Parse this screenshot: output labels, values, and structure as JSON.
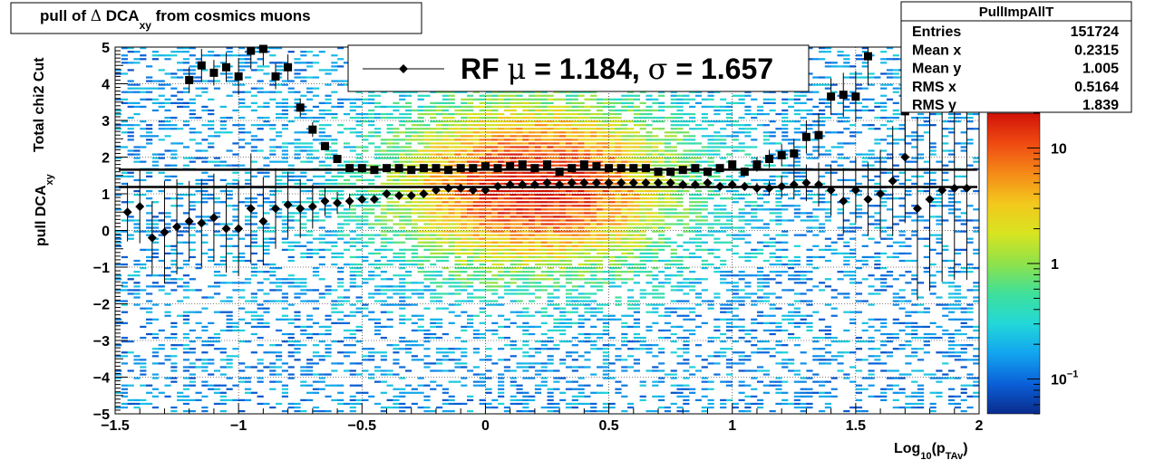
{
  "title": {
    "prefix": "pull of ",
    "delta": "Δ",
    "main": " DCA",
    "sub": "xy",
    "suffix": " from cosmics muons"
  },
  "stats": {
    "name": "PullImpAllT",
    "rows": [
      {
        "label": "Entries",
        "value": "151724"
      },
      {
        "label": "Mean x",
        "value": "0.2315"
      },
      {
        "label": "Mean y",
        "value": "1.005"
      },
      {
        "label": "RMS x",
        "value": "0.5164"
      },
      {
        "label": "RMS y",
        "value": "1.839"
      }
    ]
  },
  "legend": {
    "text_rf": "RF ",
    "mu": "μ",
    "mid": " =  1.184, ",
    "sigma": "σ",
    "end": " =   1.657"
  },
  "axis_labels": {
    "xlabel_main": "Log",
    "xlabel_sub1": "10",
    "xlabel_paren": "(p",
    "xlabel_sub2": "TAv",
    "xlabel_close": ")",
    "ylabel_outer_main": "pull DCA",
    "ylabel_outer_sub": "xy",
    "ylabel_inner": "Total chi2 Cut"
  },
  "colors": {
    "palette": [
      "#0a2b8c",
      "#0a60d8",
      "#12a4f0",
      "#22d8d8",
      "#3fe09a",
      "#8fe24a",
      "#d8e420",
      "#f3c81d",
      "#f58a18",
      "#ef4a12",
      "#d01208"
    ],
    "marker": "#000000"
  },
  "chart_data": {
    "type": "heatmap",
    "x_range": [
      -1.5,
      2
    ],
    "y_range": [
      -5,
      5
    ],
    "x_ticks": [
      "−1.5",
      "−1",
      "−0.5",
      "0",
      "0.5",
      "1",
      "1.5",
      "2"
    ],
    "x_tick_values": [
      -1.5,
      -1,
      -0.5,
      0,
      0.5,
      1,
      1.5,
      2
    ],
    "y_ticks": [
      "−5",
      "−4",
      "−3",
      "−2",
      "−1",
      "0",
      "1",
      "2",
      "3",
      "4",
      "5"
    ],
    "y_tick_values": [
      -5,
      -4,
      -3,
      -2,
      -1,
      0,
      1,
      2,
      3,
      4,
      5
    ],
    "z_log": true,
    "z_ticks": [
      "10",
      "1",
      "10"
    ],
    "z_tick_sup": [
      "",
      "",
      "−1"
    ],
    "z_tick_values": [
      10,
      1,
      0.1
    ],
    "z_range": [
      0.05,
      20
    ],
    "grid": true,
    "rms_series": {
      "marker": "square",
      "x": [
        -1.45,
        -1.4,
        -1.35,
        -1.3,
        -1.25,
        -1.2,
        -1.15,
        -1.1,
        -1.05,
        -1.0,
        -0.95,
        -0.9,
        -0.85,
        -0.8,
        -0.75,
        -0.7,
        -0.65,
        -0.6,
        -0.55,
        -0.5,
        -0.45,
        -0.4,
        -0.35,
        -0.3,
        -0.25,
        -0.2,
        -0.15,
        -0.1,
        -0.05,
        0.0,
        0.05,
        0.1,
        0.15,
        0.2,
        0.25,
        0.3,
        0.35,
        0.4,
        0.45,
        0.5,
        0.55,
        0.6,
        0.65,
        0.7,
        0.75,
        0.8,
        0.85,
        0.9,
        0.95,
        1.0,
        1.05,
        1.1,
        1.15,
        1.2,
        1.25,
        1.3,
        1.35,
        1.4,
        1.45,
        1.5,
        1.55,
        1.6,
        1.65,
        1.7
      ],
      "y": [
        null,
        null,
        null,
        null,
        null,
        4.1,
        4.5,
        4.3,
        4.45,
        4.2,
        4.9,
        4.95,
        4.2,
        4.45,
        3.35,
        2.75,
        2.3,
        1.95,
        1.7,
        1.7,
        1.65,
        1.7,
        1.7,
        1.65,
        1.7,
        1.7,
        1.65,
        1.7,
        1.7,
        1.75,
        1.7,
        1.75,
        1.8,
        1.7,
        1.8,
        1.6,
        1.7,
        1.8,
        1.75,
        1.7,
        1.7,
        1.7,
        1.7,
        1.6,
        1.6,
        1.65,
        1.7,
        1.6,
        1.7,
        1.8,
        1.6,
        1.8,
        1.95,
        2.05,
        2.1,
        2.55,
        2.6,
        3.65,
        3.7,
        3.65,
        4.75,
        null,
        null,
        3.25
      ],
      "err": [
        0,
        0,
        0,
        0,
        0,
        0.35,
        0.45,
        0.35,
        0.4,
        0.5,
        0.5,
        0.45,
        0.35,
        0.35,
        0.25,
        0.2,
        0.1,
        0.08,
        0.05,
        0.05,
        0.05,
        0.05,
        0.05,
        0.04,
        0.04,
        0.04,
        0.04,
        0.04,
        0.04,
        0.04,
        0.04,
        0.04,
        0.04,
        0.04,
        0.04,
        0.04,
        0.04,
        0.04,
        0.04,
        0.04,
        0.04,
        0.04,
        0.05,
        0.05,
        0.05,
        0.05,
        0.05,
        0.06,
        0.08,
        0.1,
        0.12,
        0.2,
        0.25,
        0.3,
        0.4,
        0.45,
        0.6,
        0.5,
        0.6,
        0.7,
        0.8,
        0,
        0,
        0.9
      ],
      "fit": 1.657
    },
    "mean_series": {
      "marker": "diamond",
      "x": [
        -1.45,
        -1.4,
        -1.35,
        -1.3,
        -1.25,
        -1.2,
        -1.15,
        -1.1,
        -1.05,
        -1.0,
        -0.95,
        -0.9,
        -0.85,
        -0.8,
        -0.75,
        -0.7,
        -0.65,
        -0.6,
        -0.55,
        -0.5,
        -0.45,
        -0.4,
        -0.35,
        -0.3,
        -0.25,
        -0.2,
        -0.15,
        -0.1,
        -0.05,
        0.0,
        0.05,
        0.1,
        0.15,
        0.2,
        0.25,
        0.3,
        0.35,
        0.4,
        0.45,
        0.5,
        0.55,
        0.6,
        0.65,
        0.7,
        0.75,
        0.8,
        0.85,
        0.9,
        0.95,
        1.0,
        1.05,
        1.1,
        1.15,
        1.2,
        1.25,
        1.3,
        1.35,
        1.4,
        1.45,
        1.5,
        1.55,
        1.6,
        1.65,
        1.7,
        1.75,
        1.8,
        1.85,
        1.9,
        1.95
      ],
      "y": [
        0.5,
        0.65,
        -0.2,
        -0.05,
        0.1,
        0.25,
        0.2,
        0.35,
        0.05,
        0.05,
        0.6,
        0.25,
        0.6,
        0.7,
        0.6,
        0.65,
        0.8,
        0.75,
        0.8,
        0.85,
        0.85,
        1.0,
        0.95,
        0.95,
        1.0,
        1.1,
        1.15,
        1.15,
        1.1,
        1.1,
        1.2,
        1.25,
        1.25,
        1.25,
        1.3,
        1.25,
        1.3,
        1.3,
        1.3,
        1.3,
        1.3,
        1.3,
        1.3,
        1.3,
        1.3,
        1.25,
        1.25,
        1.3,
        1.2,
        1.25,
        1.2,
        1.15,
        1.15,
        1.2,
        1.25,
        1.3,
        1.25,
        1.1,
        0.8,
        1.1,
        0.85,
        1.0,
        1.35,
        2.0,
        0.6,
        0.85,
        1.1,
        1.15,
        1.15
      ],
      "err": [
        0.8,
        1.0,
        1.0,
        1.4,
        1.3,
        1.1,
        1.2,
        1.2,
        1.2,
        1.3,
        1.5,
        1.2,
        1.1,
        0.9,
        0.8,
        0.6,
        0.4,
        0.3,
        0.2,
        0.1,
        0.08,
        0.06,
        0.05,
        0.05,
        0.05,
        0.04,
        0.04,
        0.04,
        0.04,
        0.04,
        0.04,
        0.04,
        0.04,
        0.04,
        0.04,
        0.04,
        0.04,
        0.04,
        0.04,
        0.04,
        0.04,
        0.04,
        0.05,
        0.05,
        0.05,
        0.05,
        0.06,
        0.07,
        0.08,
        0.1,
        0.12,
        0.15,
        0.2,
        0.3,
        0.4,
        0.5,
        0.6,
        0.7,
        0.9,
        0.9,
        1.0,
        1.2,
        1.5,
        1.8,
        2.5,
        2.5,
        2.5,
        2.5,
        2.5
      ],
      "fit": 1.184
    }
  }
}
